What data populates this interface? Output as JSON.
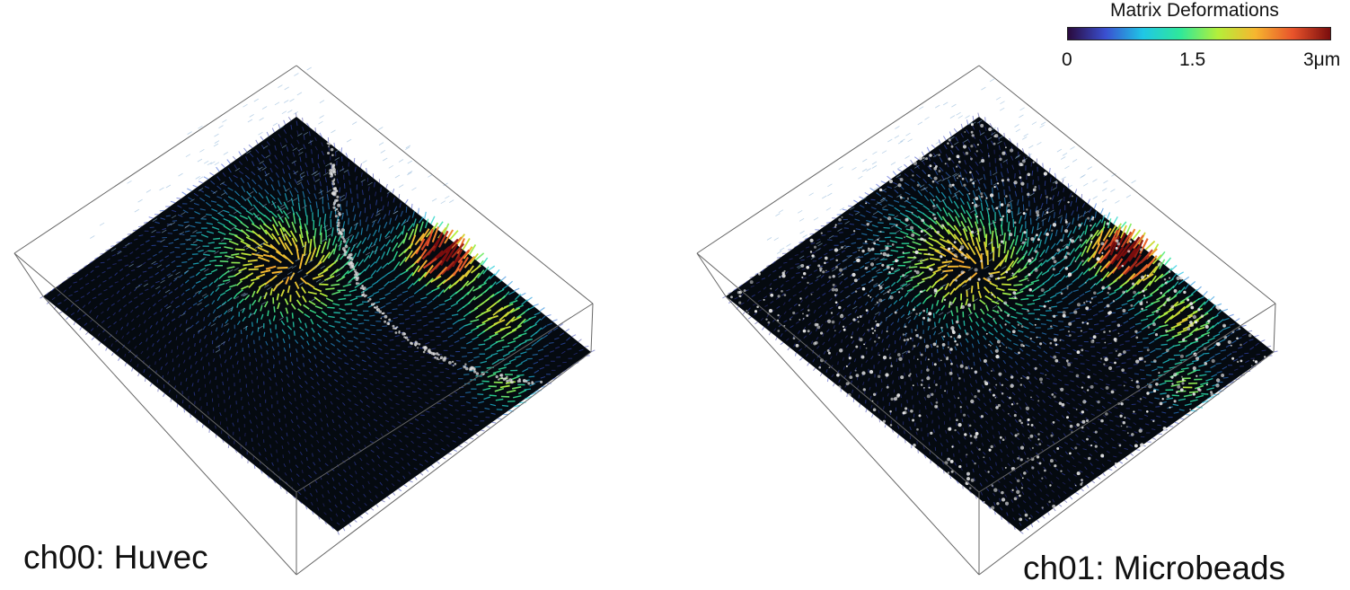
{
  "colorbar": {
    "title": "Matrix Deformations",
    "ticks": [
      "0",
      "1.5",
      "3μm"
    ],
    "colors": [
      "#2a0a3d",
      "#3a4fd0",
      "#1fc6e6",
      "#2fe89a",
      "#b4ef3a",
      "#f6b62f",
      "#e8532b",
      "#7a0d0d"
    ]
  },
  "panels": [
    {
      "label": "ch00: Huvec",
      "channel": "cell-outline"
    },
    {
      "label": "ch01: Microbeads",
      "channel": "microbeads"
    }
  ],
  "colors": {
    "field_background": "#050a10",
    "box_edge": "#666666",
    "bead": "#e8e8e8"
  }
}
